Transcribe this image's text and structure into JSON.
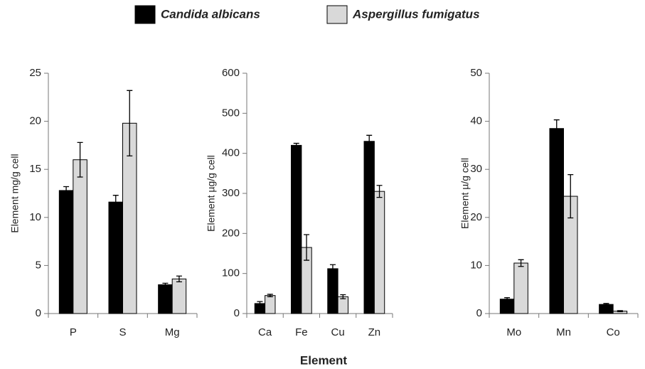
{
  "legend": {
    "items": [
      {
        "name": "Candida albicans",
        "color": "#000000"
      },
      {
        "name": "Aspergillus fumigatus",
        "color": "#d9d9d9"
      }
    ]
  },
  "xlabel": "Element",
  "chart_data": [
    {
      "type": "bar",
      "ylabel": "Element mg/g cell",
      "categories": [
        "P",
        "S",
        "Mg"
      ],
      "series": [
        {
          "values": [
            12.8,
            11.6,
            3.0
          ],
          "errors": [
            0.4,
            0.7,
            0.15
          ]
        },
        {
          "values": [
            16.0,
            19.8,
            3.6
          ],
          "errors": [
            1.8,
            3.4,
            0.3
          ]
        }
      ],
      "ylim": [
        0,
        25
      ],
      "yticks": [
        0,
        5,
        10,
        15,
        20,
        25
      ]
    },
    {
      "type": "bar",
      "ylabel": "Element µg/g cell",
      "categories": [
        "Ca",
        "Fe",
        "Cu",
        "Zn"
      ],
      "series": [
        {
          "values": [
            25,
            420,
            112,
            430
          ],
          "errors": [
            5,
            5,
            10,
            15
          ]
        },
        {
          "values": [
            45,
            165,
            42,
            305
          ],
          "errors": [
            3,
            32,
            5,
            15
          ]
        }
      ],
      "ylim": [
        0,
        600
      ],
      "yticks": [
        0,
        100,
        200,
        300,
        400,
        500,
        600
      ]
    },
    {
      "type": "bar",
      "ylabel": "Element µ/g cell",
      "categories": [
        "Mo",
        "Mn",
        "Co"
      ],
      "series": [
        {
          "values": [
            3.0,
            38.5,
            1.9
          ],
          "errors": [
            0.3,
            1.8,
            0.2
          ]
        },
        {
          "values": [
            10.5,
            24.4,
            0.5
          ],
          "errors": [
            0.7,
            4.5,
            0.1
          ]
        }
      ],
      "ylim": [
        0,
        50
      ],
      "yticks": [
        0,
        10,
        20,
        30,
        40,
        50
      ]
    }
  ]
}
